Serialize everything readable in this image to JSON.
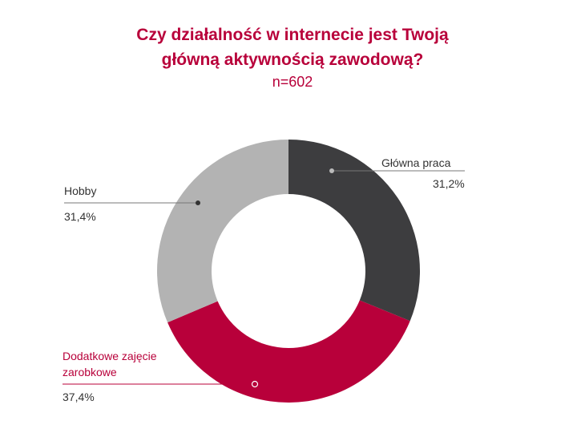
{
  "chart_data": {
    "type": "pie",
    "variant": "donut",
    "title": "Czy działalność w internecie jest Twoją główną aktywnością zawodową?",
    "title_lines": [
      "Czy działalność w internecie jest Twoją",
      "główną aktywnością zawodową?"
    ],
    "subtitle": "n=602",
    "slices": [
      {
        "label": "Główna praca",
        "value": 31.2,
        "value_label": "31,2%",
        "color": "#3d3d3f"
      },
      {
        "label": "Dodatkowe zajęcie zarobkowe",
        "label_lines": [
          "Dodatkowe zajęcie",
          "zarobkowe"
        ],
        "value": 37.4,
        "value_label": "37,4%",
        "color": "#b8003a"
      },
      {
        "label": "Hobby",
        "value": 31.4,
        "value_label": "31,4%",
        "color": "#b3b3b3"
      }
    ]
  }
}
